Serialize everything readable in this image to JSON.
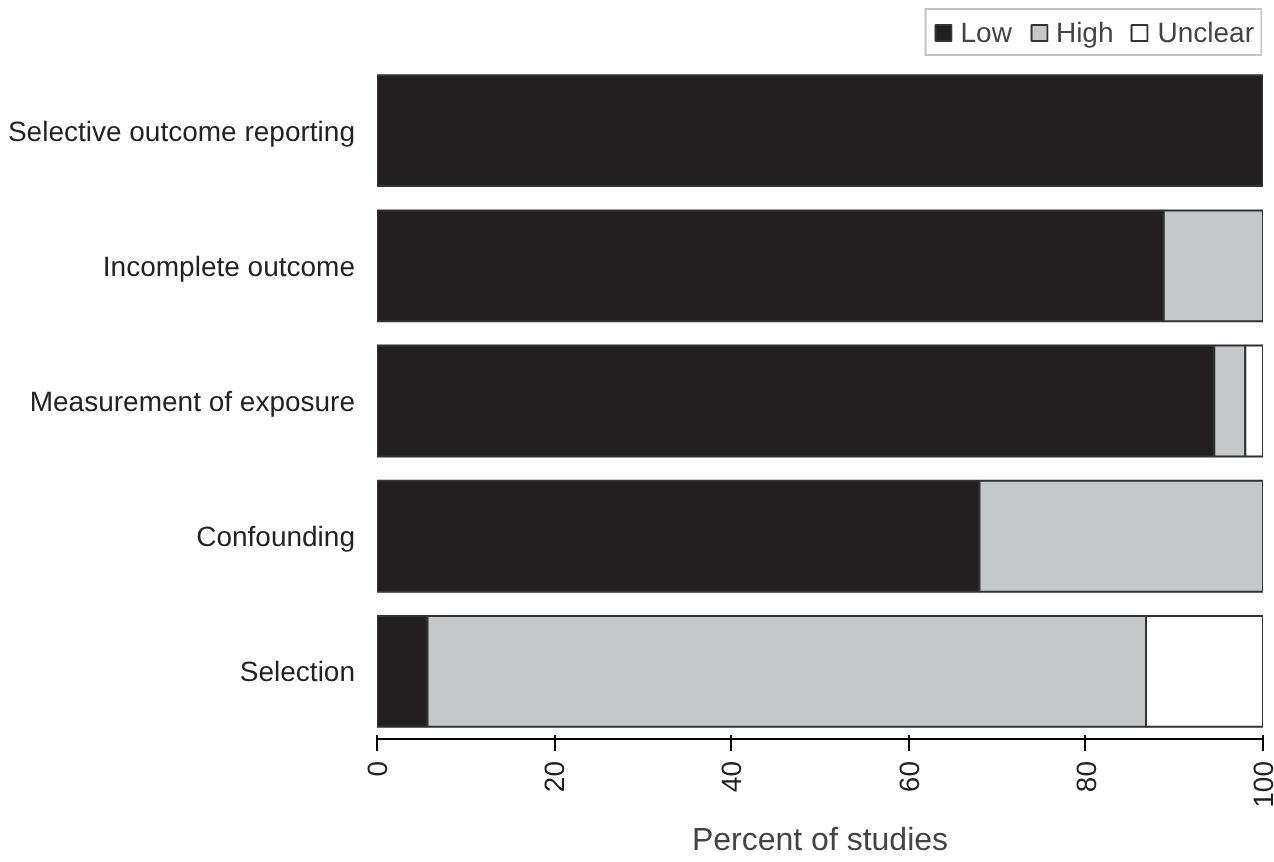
{
  "chart_data": {
    "type": "bar",
    "orientation": "horizontal",
    "stacked": true,
    "xlabel": "Percent of studies",
    "categories": [
      "Selective outcome reporting",
      "Incomplete outcome",
      "Measurement of exposure",
      "Confounding",
      "Selection"
    ],
    "series": [
      {
        "name": "Low",
        "color": "#231f20",
        "values": [
          100,
          88.8,
          94.5,
          68.0,
          5.7
        ]
      },
      {
        "name": "High",
        "color": "#c6c7c8",
        "values": [
          0,
          11.2,
          3.5,
          32.0,
          81.1
        ]
      },
      {
        "name": "Unclear",
        "color": "#ffffff",
        "values": [
          0,
          0,
          2.0,
          0,
          13.2
        ]
      }
    ],
    "xlim": [
      0,
      100
    ],
    "xticks": [
      0,
      20,
      40,
      60,
      80,
      100
    ],
    "grid": false,
    "legend": "top right"
  }
}
